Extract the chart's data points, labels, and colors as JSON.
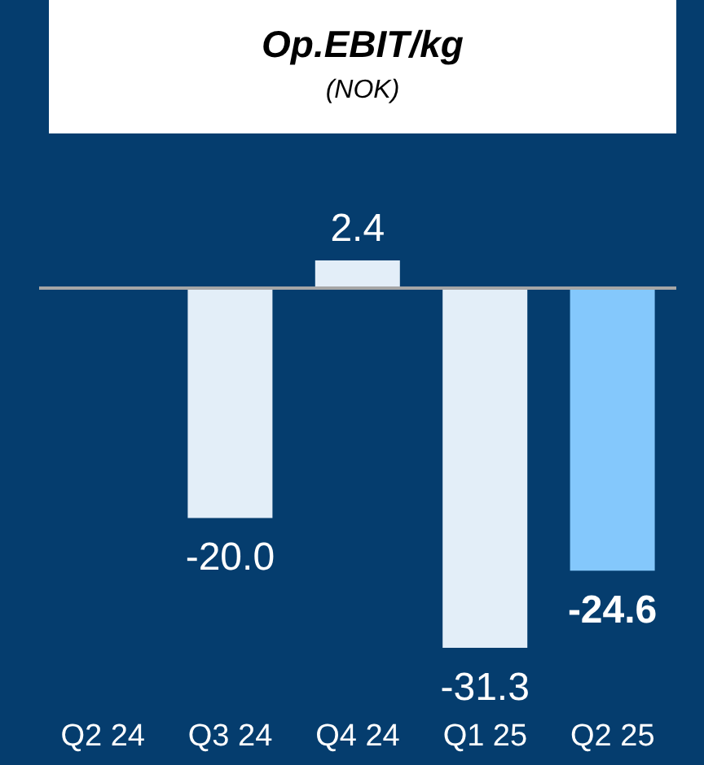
{
  "chart_data": {
    "type": "bar",
    "title": "Op.EBIT/kg",
    "subtitle": "(NOK)",
    "categories": [
      "Q2 24",
      "Q3 24",
      "Q4 24",
      "Q1 25",
      "Q2 25"
    ],
    "values": [
      null,
      -20.0,
      2.4,
      -31.3,
      -24.6
    ],
    "colors": [
      "#e3eef8",
      "#e3eef8",
      "#e3eef8",
      "#e3eef8",
      "#84c8fc"
    ],
    "value_labels": [
      null,
      "-20.0",
      "2.4",
      "-31.3",
      "-24.6"
    ],
    "legend": false
  }
}
